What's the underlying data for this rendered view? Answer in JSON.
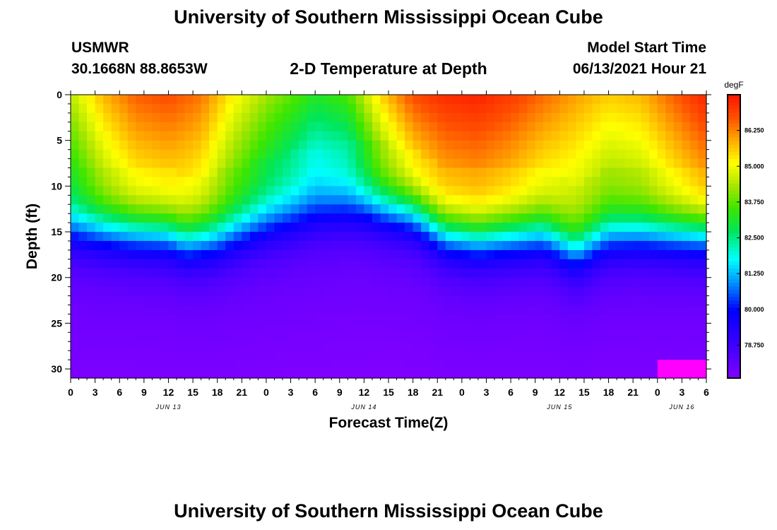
{
  "header": {
    "title": "University of Southern Mississippi Ocean Cube",
    "station": "USMWR",
    "coords": "30.1668N  88.8653W",
    "subtitle": "2-D Temperature at Depth",
    "start_label": "Model Start Time",
    "start_value": "06/13/2021 Hour 21"
  },
  "footer": {
    "title": "University of Southern Mississippi Ocean Cube"
  },
  "chart_data": {
    "type": "heatmap",
    "title": "2-D Temperature at Depth",
    "xlabel": "Forecast Time(Z)",
    "ylabel": "Depth (ft)",
    "units": "degF",
    "x_range_hours": [
      0,
      78
    ],
    "ylim": [
      31,
      0
    ],
    "y_ticks": [
      0,
      5,
      10,
      15,
      20,
      25,
      30
    ],
    "x_tick_labels": [
      "0",
      "3",
      "6",
      "9",
      "12",
      "15",
      "18",
      "21",
      "0",
      "3",
      "6",
      "9",
      "12",
      "15",
      "18",
      "21",
      "0",
      "3",
      "6",
      "9",
      "12",
      "15",
      "18",
      "21",
      "0",
      "3",
      "6"
    ],
    "x_tick_step_hours": 3,
    "date_labels": [
      {
        "label": "JUN 13",
        "hour": 12
      },
      {
        "label": "JUN 14",
        "hour": 36
      },
      {
        "label": "JUN 15",
        "hour": 60
      },
      {
        "label": "JUN 16",
        "hour": 75
      }
    ],
    "colorbar": {
      "range": [
        77.6,
        87.5
      ],
      "ticks": [
        "86.250",
        "85.000",
        "83.750",
        "82.500",
        "81.250",
        "80.000",
        "78.750"
      ],
      "tick_values": [
        86.25,
        85.0,
        83.75,
        82.5,
        81.25,
        80.0,
        78.75
      ]
    },
    "surface_temp_hourly": {
      "hours": [
        0,
        4,
        8,
        12,
        16,
        20,
        24,
        28,
        30,
        34,
        38,
        42,
        46,
        50,
        54,
        58,
        62,
        66,
        70,
        74,
        78
      ],
      "degF": [
        84.5,
        85.8,
        86.6,
        86.8,
        86.4,
        85.2,
        84.3,
        83.6,
        83.2,
        83.6,
        85.5,
        86.8,
        87.2,
        87.3,
        87.0,
        86.5,
        86.0,
        85.6,
        85.8,
        86.6,
        87.3
      ]
    },
    "thermocline_depth_ft": {
      "hours": [
        0,
        6,
        12,
        14,
        18,
        24,
        30,
        36,
        42,
        46,
        50,
        54,
        58,
        62,
        66,
        70,
        76,
        78
      ],
      "depth": [
        15.5,
        15.8,
        16.0,
        16.8,
        16.5,
        15.0,
        14.0,
        13.2,
        13.8,
        16.0,
        16.5,
        16.2,
        16.0,
        18.0,
        16.2,
        16.0,
        16.0,
        16.0
      ]
    },
    "deep_temp_degF": 78.0
  }
}
